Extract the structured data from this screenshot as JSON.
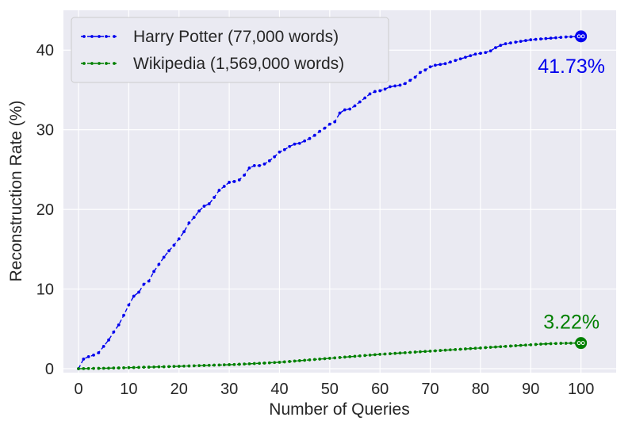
{
  "chart_data": {
    "type": "line",
    "xlabel": "Number of Queries",
    "ylabel": "Reconstruction Rate (%)",
    "xlim": [
      -3,
      107
    ],
    "ylim": [
      -0.5,
      45
    ],
    "xticks": [
      0,
      10,
      20,
      30,
      40,
      50,
      60,
      70,
      80,
      90,
      100
    ],
    "yticks": [
      0,
      10,
      20,
      30,
      40
    ],
    "grid": true,
    "legend_position": "top-left",
    "x": [
      0,
      1,
      2,
      3,
      4,
      5,
      6,
      7,
      8,
      9,
      10,
      11,
      12,
      13,
      14,
      15,
      16,
      17,
      18,
      19,
      20,
      21,
      22,
      23,
      24,
      25,
      26,
      27,
      28,
      29,
      30,
      31,
      32,
      33,
      34,
      35,
      36,
      37,
      38,
      39,
      40,
      41,
      42,
      43,
      44,
      45,
      46,
      47,
      48,
      49,
      50,
      51,
      52,
      53,
      54,
      55,
      56,
      57,
      58,
      59,
      60,
      61,
      62,
      63,
      64,
      65,
      66,
      67,
      68,
      69,
      70,
      71,
      72,
      73,
      74,
      75,
      76,
      77,
      78,
      79,
      80,
      81,
      82,
      83,
      84,
      85,
      86,
      87,
      88,
      89,
      90,
      91,
      92,
      93,
      94,
      95,
      96,
      97,
      98,
      99,
      100
    ],
    "series": [
      {
        "name": "Harry Potter (77,000 words)",
        "color": "#0000ee",
        "values": [
          0,
          1.2,
          1.5,
          1.7,
          2.0,
          2.8,
          3.6,
          4.6,
          5.5,
          6.7,
          8.0,
          9.1,
          9.6,
          10.6,
          11.0,
          12.2,
          13.1,
          14.0,
          14.8,
          15.5,
          16.3,
          17.2,
          18.3,
          19.0,
          19.8,
          20.4,
          20.7,
          21.5,
          22.4,
          22.9,
          23.4,
          23.5,
          23.7,
          24.3,
          25.2,
          25.5,
          25.5,
          25.7,
          26.1,
          26.6,
          27.2,
          27.5,
          27.9,
          28.2,
          28.3,
          28.6,
          28.9,
          29.3,
          29.8,
          30.2,
          30.7,
          31.0,
          32.1,
          32.5,
          32.6,
          33.0,
          33.5,
          34.0,
          34.5,
          34.8,
          34.9,
          35.1,
          35.4,
          35.5,
          35.6,
          35.8,
          36.2,
          36.6,
          37.2,
          37.5,
          37.9,
          38.1,
          38.2,
          38.3,
          38.5,
          38.7,
          38.9,
          39.1,
          39.3,
          39.5,
          39.6,
          39.7,
          39.9,
          40.3,
          40.6,
          40.8,
          40.9,
          41.0,
          41.1,
          41.2,
          41.3,
          41.35,
          41.4,
          41.45,
          41.5,
          41.55,
          41.6,
          41.65,
          41.68,
          41.7,
          41.73
        ]
      },
      {
        "name": "Wikipedia (1,569,000 words)",
        "color": "#008000",
        "values": [
          0,
          0.01,
          0.02,
          0.03,
          0.04,
          0.05,
          0.06,
          0.08,
          0.09,
          0.11,
          0.13,
          0.14,
          0.16,
          0.18,
          0.19,
          0.21,
          0.23,
          0.24,
          0.26,
          0.28,
          0.3,
          0.32,
          0.34,
          0.36,
          0.38,
          0.4,
          0.42,
          0.44,
          0.46,
          0.48,
          0.5,
          0.52,
          0.55,
          0.58,
          0.61,
          0.64,
          0.67,
          0.7,
          0.73,
          0.77,
          0.8,
          0.85,
          0.9,
          0.95,
          1.0,
          1.05,
          1.1,
          1.15,
          1.2,
          1.25,
          1.3,
          1.35,
          1.4,
          1.45,
          1.5,
          1.55,
          1.6,
          1.65,
          1.7,
          1.75,
          1.8,
          1.84,
          1.88,
          1.92,
          1.96,
          2.0,
          2.04,
          2.08,
          2.12,
          2.16,
          2.2,
          2.24,
          2.28,
          2.32,
          2.36,
          2.4,
          2.44,
          2.48,
          2.52,
          2.56,
          2.6,
          2.64,
          2.68,
          2.72,
          2.76,
          2.8,
          2.84,
          2.88,
          2.92,
          2.96,
          3.0,
          3.04,
          3.08,
          3.11,
          3.14,
          3.16,
          3.18,
          3.19,
          3.2,
          3.21,
          3.22
        ]
      }
    ],
    "annotations": [
      {
        "text": "41.73%",
        "color": "#0000ee",
        "x": 100,
        "y": 41.73
      },
      {
        "text": "3.22%",
        "color": "#008000",
        "x": 100,
        "y": 3.22
      }
    ]
  }
}
